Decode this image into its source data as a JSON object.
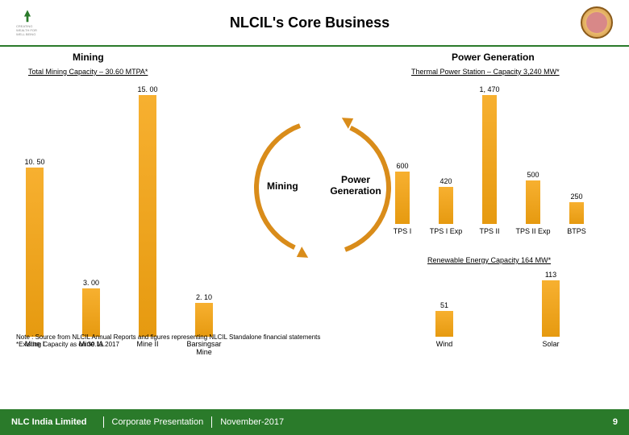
{
  "header": {
    "title": "NLCIL's Core Business",
    "left_logo_sub": "CREATING WEALTH FOR WELL BEING"
  },
  "mining": {
    "header": "Mining",
    "sub": "Total Mining Capacity – 30.60 MTPA*",
    "ymax": 15,
    "bar_color": "#e69a10",
    "categories": [
      "Mine I",
      "Mine IA",
      "Mine II",
      "Barsingsar Mine"
    ],
    "values": [
      10.5,
      3.0,
      15.0,
      2.1
    ],
    "value_labels": [
      "10. 50",
      "3. 00",
      "15. 00",
      "2. 10"
    ]
  },
  "thermal": {
    "header": "Power Generation",
    "sub": "Thermal Power Station – Capacity 3,240 MW*",
    "ymax": 1470,
    "bar_color": "#e69a10",
    "categories": [
      "TPS I",
      "TPS I Exp",
      "TPS II",
      "TPS II Exp",
      "BTPS"
    ],
    "values": [
      600,
      420,
      1470,
      500,
      250
    ],
    "value_labels": [
      "600",
      "420",
      "1, 470",
      "500",
      "250"
    ]
  },
  "renewable": {
    "sub": "Renewable Energy Capacity 164 MW*",
    "ymax": 113,
    "bar_color": "#e69a10",
    "categories": [
      "Wind",
      "Solar"
    ],
    "values": [
      51,
      113
    ],
    "value_labels": [
      "51",
      "113"
    ]
  },
  "center": {
    "left_label": "Mining",
    "right_label": "Power Generation",
    "arc_color": "#d98c1a"
  },
  "footnote": {
    "line1": "Note : Source from NLCIL Annual Reports and figures representing NLCIL Standalone financial statements",
    "line2": "*Existing Capacity as on 30.11.2017"
  },
  "footer": {
    "company": "NLC India Limited",
    "doc": "Corporate Presentation",
    "date": "November-2017",
    "page": "9"
  },
  "colors": {
    "green": "#2a7a2a",
    "bar_top": "#f7b030",
    "bar_bottom": "#e69a10"
  }
}
